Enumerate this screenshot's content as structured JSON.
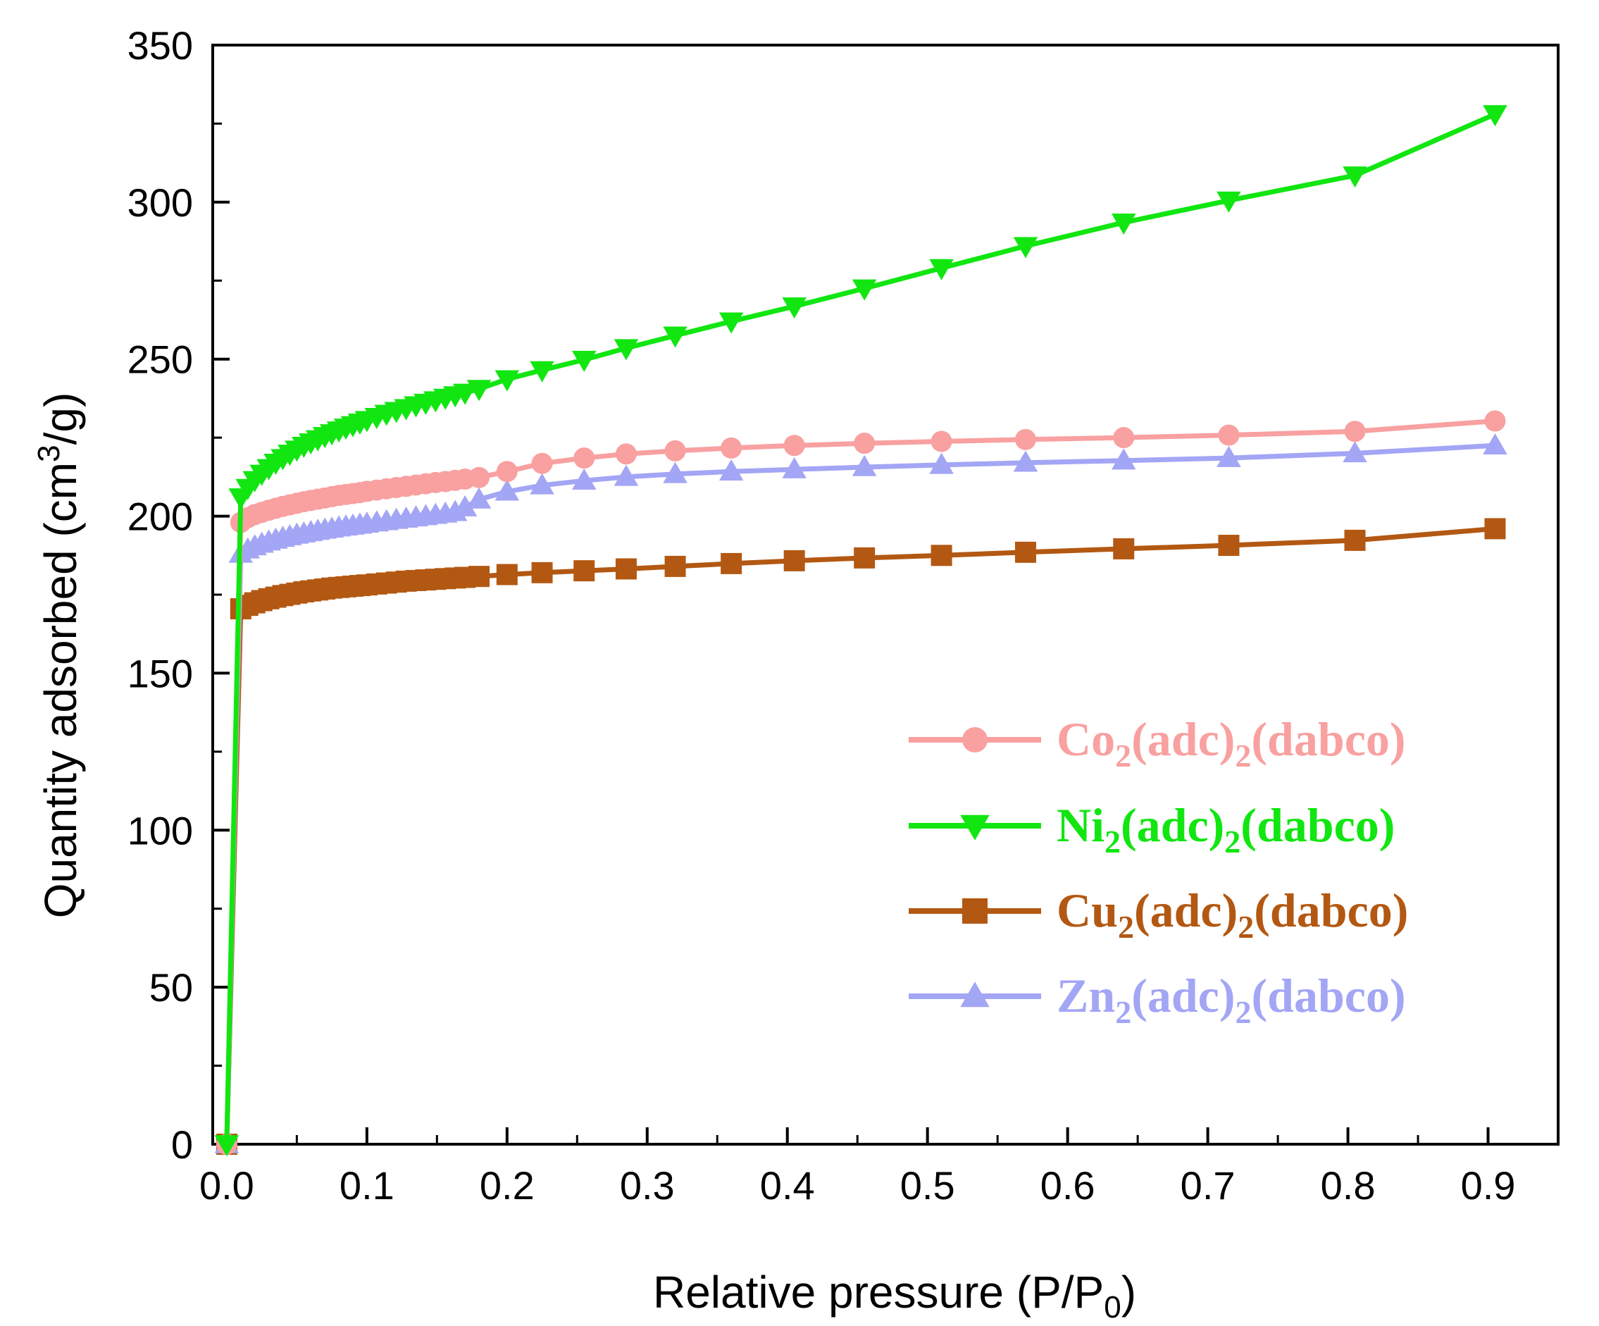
{
  "chart_data": {
    "type": "line",
    "title": "",
    "xlabel": {
      "main": "Relative pressure (P/P",
      "sub": "0",
      "tail": ")"
    },
    "ylabel": {
      "main": "Quantity adsorbed (cm",
      "sup": "3",
      "tail": "/g)"
    },
    "xlim": [
      -0.01,
      0.95
    ],
    "ylim": [
      0,
      350
    ],
    "xticks": [
      0.0,
      0.1,
      0.2,
      0.3,
      0.4,
      0.5,
      0.6,
      0.7,
      0.8,
      0.9
    ],
    "xtick_labels": [
      "0.0",
      "0.1",
      "0.2",
      "0.3",
      "0.4",
      "0.5",
      "0.6",
      "0.7",
      "0.8",
      "0.9"
    ],
    "yticks": [
      0,
      50,
      100,
      150,
      200,
      250,
      300,
      350
    ],
    "ytick_labels": [
      "0",
      "50",
      "100",
      "150",
      "200",
      "250",
      "300",
      "350"
    ],
    "grid": false,
    "legend_position": "right-middle",
    "series": [
      {
        "name": "Co2(adc)2(dabco)",
        "label_parts": [
          "Co",
          "2",
          "(adc)",
          "2",
          "(dabco)"
        ],
        "color": "#f9a0a0",
        "marker": "circle",
        "x": [
          0.0,
          0.01,
          0.015,
          0.02,
          0.025,
          0.03,
          0.035,
          0.04,
          0.045,
          0.05,
          0.055,
          0.06,
          0.065,
          0.07,
          0.075,
          0.08,
          0.085,
          0.09,
          0.095,
          0.1,
          0.107,
          0.114,
          0.121,
          0.128,
          0.135,
          0.142,
          0.149,
          0.156,
          0.163,
          0.17,
          0.18,
          0.2,
          0.225,
          0.255,
          0.285,
          0.32,
          0.36,
          0.405,
          0.455,
          0.51,
          0.57,
          0.64,
          0.715,
          0.805,
          0.905
        ],
        "y": [
          0,
          198,
          199.5,
          200.5,
          201.2,
          201.9,
          202.5,
          203.1,
          203.6,
          204.1,
          204.6,
          205,
          205.4,
          205.8,
          206.2,
          206.6,
          206.9,
          207.2,
          207.5,
          207.9,
          208.3,
          208.7,
          209.1,
          209.5,
          209.9,
          210.3,
          210.7,
          211,
          211.4,
          211.8,
          212.3,
          214.2,
          216.8,
          218.5,
          219.8,
          220.8,
          221.7,
          222.5,
          223.2,
          223.8,
          224.4,
          225,
          225.8,
          227,
          230.3
        ]
      },
      {
        "name": "Ni2(adc)2(dabco)",
        "label_parts": [
          "Ni",
          "2",
          "(adc)",
          "2",
          "(dabco)"
        ],
        "color": "#11e611",
        "marker": "triangle-down",
        "x": [
          0.0,
          0.01,
          0.015,
          0.02,
          0.025,
          0.03,
          0.035,
          0.04,
          0.045,
          0.05,
          0.055,
          0.06,
          0.065,
          0.07,
          0.075,
          0.08,
          0.085,
          0.09,
          0.095,
          0.1,
          0.107,
          0.114,
          0.121,
          0.128,
          0.135,
          0.142,
          0.149,
          0.156,
          0.163,
          0.17,
          0.18,
          0.2,
          0.225,
          0.255,
          0.285,
          0.32,
          0.36,
          0.405,
          0.455,
          0.51,
          0.57,
          0.64,
          0.715,
          0.805,
          0.905
        ],
        "y": [
          0,
          206,
          209,
          211.5,
          213.5,
          215.3,
          217,
          218.5,
          219.9,
          221.2,
          222.4,
          223.5,
          224.5,
          225.5,
          226.4,
          227.3,
          228.2,
          229,
          229.8,
          230.6,
          231.6,
          232.6,
          233.5,
          234.4,
          235.3,
          236.1,
          236.9,
          237.7,
          238.5,
          239.3,
          240.5,
          243.6,
          246.5,
          249.8,
          253.5,
          257.5,
          262,
          266.8,
          272.5,
          279,
          286,
          293.5,
          300.5,
          308.5,
          328
        ]
      },
      {
        "name": "Cu2(adc)2(dabco)",
        "label_parts": [
          "Cu",
          "2",
          "(adc)",
          "2",
          "(dabco)"
        ],
        "color": "#b35812",
        "marker": "square",
        "x": [
          0.0,
          0.01,
          0.015,
          0.02,
          0.025,
          0.03,
          0.035,
          0.04,
          0.045,
          0.05,
          0.055,
          0.06,
          0.065,
          0.07,
          0.075,
          0.08,
          0.085,
          0.09,
          0.095,
          0.1,
          0.107,
          0.114,
          0.121,
          0.128,
          0.135,
          0.142,
          0.149,
          0.156,
          0.163,
          0.17,
          0.18,
          0.2,
          0.225,
          0.255,
          0.285,
          0.32,
          0.36,
          0.405,
          0.455,
          0.51,
          0.57,
          0.64,
          0.715,
          0.805,
          0.905
        ],
        "y": [
          0,
          170.5,
          171.6,
          172.4,
          173.1,
          173.7,
          174.2,
          174.7,
          175.1,
          175.5,
          175.9,
          176.2,
          176.5,
          176.8,
          177.1,
          177.3,
          177.5,
          177.7,
          177.9,
          178.1,
          178.4,
          178.7,
          179,
          179.3,
          179.5,
          179.7,
          179.9,
          180.1,
          180.3,
          180.5,
          180.8,
          181.4,
          182,
          182.6,
          183.2,
          184,
          184.9,
          185.8,
          186.7,
          187.5,
          188.5,
          189.6,
          190.7,
          192.3,
          196
        ]
      },
      {
        "name": "Zn2(adc)2(dabco)",
        "label_parts": [
          "Zn",
          "2",
          "(adc)",
          "2",
          "(dabco)"
        ],
        "color": "#a3a5f5",
        "marker": "triangle-up",
        "x": [
          0.0,
          0.01,
          0.015,
          0.02,
          0.025,
          0.03,
          0.035,
          0.04,
          0.045,
          0.05,
          0.055,
          0.06,
          0.065,
          0.07,
          0.075,
          0.08,
          0.085,
          0.09,
          0.095,
          0.1,
          0.107,
          0.114,
          0.121,
          0.128,
          0.135,
          0.142,
          0.149,
          0.156,
          0.163,
          0.17,
          0.18,
          0.2,
          0.225,
          0.255,
          0.285,
          0.32,
          0.36,
          0.405,
          0.455,
          0.51,
          0.57,
          0.64,
          0.715,
          0.805,
          0.905
        ],
        "y": [
          0,
          188,
          189.4,
          190.4,
          191.2,
          191.9,
          192.5,
          193.1,
          193.6,
          194.1,
          194.5,
          194.9,
          195.3,
          195.7,
          196,
          196.4,
          196.7,
          197,
          197.3,
          197.6,
          198,
          198.4,
          198.8,
          199.2,
          199.6,
          200,
          200.4,
          200.8,
          201.3,
          202.8,
          205.3,
          207.8,
          209.8,
          211.3,
          212.5,
          213.4,
          214.2,
          214.9,
          215.6,
          216.3,
          217,
          217.7,
          218.5,
          220,
          222.5
        ]
      }
    ]
  }
}
